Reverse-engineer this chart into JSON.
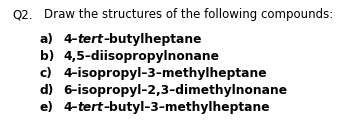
{
  "background_color": "#ffffff",
  "question_label": "Q2.",
  "question_text": "Draw the structures of the following compounds:",
  "items": [
    {
      "label": "a)",
      "parts": [
        {
          "text": "4–",
          "italic": false
        },
        {
          "text": "tert",
          "italic": true
        },
        {
          "text": "–butylheptane",
          "italic": false
        }
      ]
    },
    {
      "label": "b)",
      "parts": [
        {
          "text": "4,5–diisopropylnonane",
          "italic": false
        }
      ]
    },
    {
      "label": "c)",
      "parts": [
        {
          "text": "4–isopropyl–3–methylheptane",
          "italic": false
        }
      ]
    },
    {
      "label": "d)",
      "parts": [
        {
          "text": "6–isopropyl–2,3–dimethylnonane",
          "italic": false
        }
      ]
    },
    {
      "label": "e)",
      "parts": [
        {
          "text": "4–",
          "italic": false
        },
        {
          "text": "tert",
          "italic": true
        },
        {
          "text": "–butyl–3–methylheptane",
          "italic": false
        }
      ]
    }
  ],
  "q_fontsize": 8.5,
  "item_fontsize": 8.8,
  "font_family": "DejaVu Sans"
}
